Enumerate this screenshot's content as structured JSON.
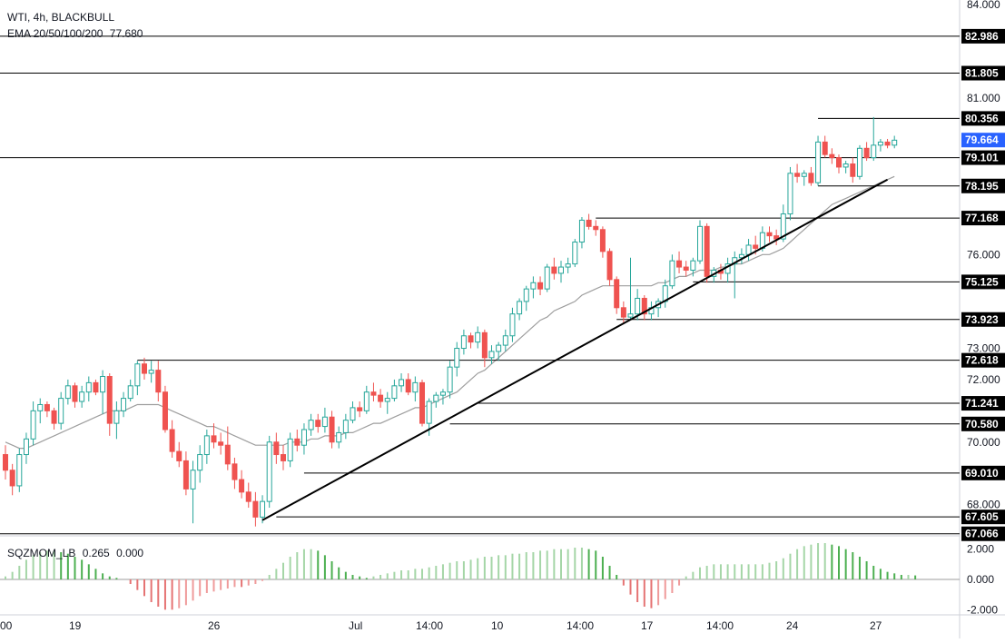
{
  "symbol_line": {
    "symbol": "WTI, 4h, BLACKBULL"
  },
  "ema_line": {
    "label": "EMA 20/50/100/200",
    "value": "77.680"
  },
  "sqz_line": {
    "label": "SQZMOM_LB",
    "v1": "0.265",
    "v2": "0.000"
  },
  "colors": {
    "up": "#26a69a",
    "down": "#ef5350",
    "ema": "#9e9e9e",
    "level": "#000000",
    "trend": "#000000",
    "price_tag": "#2962ff",
    "mom_green": "#a5d6a7",
    "mom_dark": "#4caf50",
    "mom_red": "#ef9a9a"
  },
  "chart_data": {
    "type": "candlestick",
    "symbol": "WTI",
    "timeframe": "4h",
    "ylim": [
      67.0,
      84.0
    ],
    "y_ticks": [
      "84.000",
      "81.000",
      "76.000",
      "73.000",
      "72.000",
      "70.000",
      "68.000"
    ],
    "x_ticks": [
      "00",
      "19",
      "26",
      "Jul",
      "14:00",
      "10",
      "14:00",
      "17",
      "14:00",
      "24",
      "27"
    ],
    "horizontal_levels": [
      "82.986",
      "81.805",
      "80.356",
      "79.101",
      "78.195",
      "77.168",
      "75.125",
      "73.923",
      "72.618",
      "71.241",
      "70.580",
      "69.010",
      "67.605",
      "67.066"
    ],
    "current_price": "79.664",
    "candles_ohlc": [
      [
        69.6,
        69.9,
        68.8,
        69.1
      ],
      [
        69.1,
        69.3,
        68.3,
        68.6
      ],
      [
        68.6,
        69.8,
        68.4,
        69.6
      ],
      [
        69.6,
        70.3,
        69.3,
        70.1
      ],
      [
        70.1,
        71.3,
        69.9,
        71.0
      ],
      [
        71.0,
        71.4,
        70.6,
        71.2
      ],
      [
        71.2,
        71.3,
        70.8,
        71.0
      ],
      [
        71.0,
        71.1,
        70.4,
        70.6
      ],
      [
        70.6,
        71.6,
        70.4,
        71.4
      ],
      [
        71.4,
        72.0,
        71.2,
        71.8
      ],
      [
        71.8,
        71.9,
        71.1,
        71.3
      ],
      [
        71.3,
        71.8,
        71.1,
        71.6
      ],
      [
        71.6,
        72.1,
        71.3,
        71.9
      ],
      [
        71.9,
        72.0,
        71.5,
        71.6
      ],
      [
        71.6,
        72.3,
        70.9,
        72.1
      ],
      [
        72.1,
        72.2,
        70.2,
        70.6
      ],
      [
        70.6,
        71.3,
        70.1,
        71.0
      ],
      [
        71.0,
        71.6,
        70.8,
        71.4
      ],
      [
        71.4,
        72.0,
        71.3,
        71.8
      ],
      [
        71.8,
        72.6,
        71.5,
        72.5
      ],
      [
        72.5,
        72.7,
        72.0,
        72.2
      ],
      [
        72.2,
        72.6,
        71.9,
        72.3
      ],
      [
        72.3,
        72.6,
        71.3,
        71.6
      ],
      [
        71.6,
        71.8,
        70.3,
        70.4
      ],
      [
        70.4,
        70.7,
        69.5,
        69.7
      ],
      [
        69.7,
        70.0,
        69.2,
        69.4
      ],
      [
        69.4,
        69.7,
        68.3,
        68.5
      ],
      [
        68.5,
        69.4,
        67.4,
        69.1
      ],
      [
        69.1,
        69.9,
        68.7,
        69.6
      ],
      [
        69.6,
        70.4,
        69.3,
        70.2
      ],
      [
        70.2,
        70.6,
        69.8,
        70.0
      ],
      [
        70.0,
        70.3,
        69.6,
        69.9
      ],
      [
        69.9,
        70.5,
        69.1,
        69.3
      ],
      [
        69.3,
        69.5,
        68.5,
        68.8
      ],
      [
        68.8,
        69.1,
        68.2,
        68.4
      ],
      [
        68.4,
        68.7,
        67.9,
        68.1
      ],
      [
        68.1,
        68.4,
        67.3,
        67.6
      ],
      [
        67.6,
        68.3,
        67.4,
        68.1
      ],
      [
        68.1,
        70.2,
        67.9,
        70.0
      ],
      [
        70.0,
        70.3,
        69.3,
        69.6
      ],
      [
        69.6,
        69.9,
        69.1,
        69.4
      ],
      [
        69.4,
        70.3,
        69.2,
        70.1
      ],
      [
        70.1,
        70.4,
        69.7,
        69.9
      ],
      [
        69.9,
        70.6,
        69.6,
        70.4
      ],
      [
        70.4,
        70.9,
        70.2,
        70.7
      ],
      [
        70.7,
        70.9,
        70.3,
        70.5
      ],
      [
        70.5,
        71.1,
        70.3,
        70.8
      ],
      [
        70.8,
        71.0,
        69.8,
        70.0
      ],
      [
        70.0,
        70.5,
        69.8,
        70.3
      ],
      [
        70.3,
        70.9,
        70.1,
        70.7
      ],
      [
        70.7,
        71.3,
        70.6,
        71.1
      ],
      [
        71.1,
        71.3,
        70.8,
        71.0
      ],
      [
        71.0,
        71.8,
        70.9,
        71.6
      ],
      [
        71.6,
        71.9,
        71.3,
        71.5
      ],
      [
        71.5,
        71.7,
        71.1,
        71.3
      ],
      [
        71.3,
        71.6,
        70.9,
        71.4
      ],
      [
        71.4,
        72.0,
        71.3,
        71.8
      ],
      [
        71.8,
        72.2,
        71.6,
        72.0
      ],
      [
        72.0,
        72.2,
        71.5,
        71.6
      ],
      [
        71.6,
        72.1,
        71.3,
        71.9
      ],
      [
        71.9,
        72.0,
        70.5,
        70.6
      ],
      [
        70.6,
        71.4,
        70.2,
        71.3
      ],
      [
        71.3,
        71.6,
        71.1,
        71.5
      ],
      [
        71.5,
        71.7,
        71.2,
        71.6
      ],
      [
        71.6,
        72.6,
        71.4,
        72.4
      ],
      [
        72.4,
        73.2,
        72.1,
        73.0
      ],
      [
        73.0,
        73.6,
        72.8,
        73.4
      ],
      [
        73.4,
        73.5,
        73.0,
        73.2
      ],
      [
        73.2,
        73.7,
        73.0,
        73.5
      ],
      [
        73.5,
        73.6,
        72.4,
        72.7
      ],
      [
        72.7,
        73.1,
        72.5,
        72.9
      ],
      [
        72.9,
        73.2,
        72.6,
        73.1
      ],
      [
        73.1,
        73.6,
        72.9,
        73.4
      ],
      [
        73.4,
        74.3,
        73.2,
        74.1
      ],
      [
        74.1,
        74.6,
        73.9,
        74.5
      ],
      [
        74.5,
        75.0,
        74.2,
        74.9
      ],
      [
        74.9,
        75.3,
        74.6,
        75.1
      ],
      [
        75.1,
        75.3,
        74.7,
        74.9
      ],
      [
        74.9,
        75.7,
        74.8,
        75.6
      ],
      [
        75.6,
        75.9,
        75.2,
        75.4
      ],
      [
        75.4,
        75.8,
        75.1,
        75.6
      ],
      [
        75.6,
        75.9,
        75.4,
        75.7
      ],
      [
        75.7,
        76.5,
        75.6,
        76.4
      ],
      [
        76.4,
        77.2,
        76.2,
        77.1
      ],
      [
        77.1,
        77.3,
        76.8,
        76.9
      ],
      [
        76.9,
        77.1,
        76.6,
        76.8
      ],
      [
        76.8,
        76.9,
        75.9,
        76.1
      ],
      [
        76.1,
        76.2,
        75.0,
        75.2
      ],
      [
        75.2,
        75.3,
        74.1,
        74.3
      ],
      [
        74.3,
        74.5,
        73.8,
        74.0
      ],
      [
        74.0,
        75.9,
        73.9,
        74.1
      ],
      [
        74.1,
        74.9,
        73.9,
        74.6
      ],
      [
        74.6,
        74.7,
        73.9,
        74.1
      ],
      [
        74.1,
        74.5,
        73.9,
        74.3
      ],
      [
        74.3,
        74.6,
        74.0,
        74.5
      ],
      [
        74.5,
        75.2,
        74.3,
        75.0
      ],
      [
        75.0,
        76.0,
        74.9,
        75.8
      ],
      [
        75.8,
        76.1,
        75.4,
        75.6
      ],
      [
        75.6,
        75.8,
        75.3,
        75.5
      ],
      [
        75.5,
        75.9,
        75.3,
        75.8
      ],
      [
        75.8,
        77.1,
        75.7,
        76.9
      ],
      [
        76.9,
        77.0,
        75.1,
        75.3
      ],
      [
        75.3,
        75.6,
        75.1,
        75.5
      ],
      [
        75.5,
        75.7,
        75.2,
        75.4
      ],
      [
        75.4,
        75.9,
        75.1,
        75.7
      ],
      [
        75.7,
        76.1,
        74.6,
        75.9
      ],
      [
        75.9,
        76.2,
        75.7,
        76.0
      ],
      [
        76.0,
        76.5,
        75.8,
        76.3
      ],
      [
        76.3,
        76.6,
        76.0,
        76.2
      ],
      [
        76.2,
        76.9,
        76.1,
        76.7
      ],
      [
        76.7,
        76.9,
        76.4,
        76.6
      ],
      [
        76.6,
        76.8,
        76.3,
        76.5
      ],
      [
        76.5,
        77.6,
        76.4,
        77.3
      ],
      [
        77.3,
        78.8,
        77.1,
        78.6
      ],
      [
        78.6,
        78.9,
        78.3,
        78.5
      ],
      [
        78.5,
        78.7,
        78.2,
        78.6
      ],
      [
        78.6,
        78.8,
        78.2,
        78.3
      ],
      [
        78.3,
        79.8,
        78.2,
        79.6
      ],
      [
        79.6,
        79.8,
        79.1,
        79.2
      ],
      [
        79.2,
        79.4,
        78.9,
        79.1
      ],
      [
        79.1,
        79.2,
        78.6,
        78.8
      ],
      [
        78.8,
        79.0,
        78.6,
        78.9
      ],
      [
        78.9,
        79.1,
        78.3,
        78.5
      ],
      [
        78.5,
        79.5,
        78.4,
        79.4
      ],
      [
        79.4,
        79.6,
        79.0,
        79.1
      ],
      [
        79.1,
        80.4,
        79.0,
        79.5
      ],
      [
        79.5,
        79.7,
        79.3,
        79.6
      ],
      [
        79.6,
        79.7,
        79.4,
        79.5
      ],
      [
        79.5,
        79.8,
        79.4,
        79.66
      ]
    ],
    "ema_series": [
      70.0,
      69.9,
      69.8,
      69.8,
      69.9,
      70.0,
      70.1,
      70.2,
      70.3,
      70.4,
      70.5,
      70.6,
      70.7,
      70.8,
      70.9,
      71.0,
      71.0,
      71.0,
      71.1,
      71.2,
      71.2,
      71.2,
      71.2,
      71.1,
      71.0,
      70.9,
      70.8,
      70.7,
      70.6,
      70.5,
      70.5,
      70.4,
      70.3,
      70.2,
      70.1,
      70.0,
      69.9,
      69.9,
      69.9,
      69.9,
      69.9,
      70.0,
      70.0,
      70.0,
      70.1,
      70.1,
      70.2,
      70.2,
      70.2,
      70.3,
      70.3,
      70.4,
      70.5,
      70.6,
      70.6,
      70.7,
      70.8,
      70.9,
      71.0,
      71.1,
      71.1,
      71.2,
      71.3,
      71.4,
      71.5,
      71.6,
      71.8,
      72.0,
      72.2,
      72.3,
      72.5,
      72.7,
      72.9,
      73.1,
      73.3,
      73.5,
      73.7,
      73.9,
      74.0,
      74.2,
      74.3,
      74.4,
      74.5,
      74.7,
      74.8,
      74.9,
      75.0,
      75.0,
      75.0,
      75.0,
      75.0,
      75.0,
      75.0,
      75.0,
      75.1,
      75.1,
      75.2,
      75.3,
      75.3,
      75.4,
      75.5,
      75.5,
      75.5,
      75.6,
      75.6,
      75.7,
      75.7,
      75.8,
      75.9,
      76.0,
      76.0,
      76.1,
      76.2,
      76.4,
      76.6,
      76.8,
      77.0,
      77.2,
      77.4,
      77.6,
      77.7,
      77.8,
      77.9,
      78.0,
      78.1,
      78.2,
      78.3,
      78.4,
      78.5
    ],
    "trendline": [
      [
        37,
        67.5
      ],
      [
        127,
        78.4
      ]
    ],
    "squeeze_momentum": {
      "ylim": [
        -2.4,
        2.4
      ],
      "y_ticks": [
        "2.000",
        "0.000",
        "-2.000"
      ],
      "values": [
        0.2,
        0.5,
        0.9,
        1.3,
        1.6,
        1.8,
        1.9,
        1.9,
        1.8,
        1.7,
        1.5,
        1.3,
        1.0,
        0.7,
        0.4,
        0.2,
        0.1,
        0.0,
        -0.3,
        -0.7,
        -1.1,
        -1.5,
        -1.8,
        -2.0,
        -2.0,
        -1.9,
        -1.7,
        -1.4,
        -1.1,
        -0.9,
        -0.8,
        -0.7,
        -0.6,
        -0.5,
        -0.5,
        -0.4,
        -0.3,
        -0.1,
        0.3,
        0.7,
        1.1,
        1.5,
        1.8,
        2.0,
        2.0,
        1.9,
        1.6,
        1.2,
        0.8,
        0.5,
        0.3,
        0.2,
        0.1,
        0.2,
        0.3,
        0.4,
        0.5,
        0.6,
        0.6,
        0.7,
        0.7,
        0.8,
        0.9,
        1.0,
        1.1,
        1.2,
        1.2,
        1.3,
        1.4,
        1.5,
        1.5,
        1.6,
        1.6,
        1.7,
        1.7,
        1.8,
        1.8,
        1.9,
        1.9,
        2.0,
        2.0,
        2.0,
        2.1,
        2.1,
        2.0,
        1.9,
        1.5,
        0.9,
        0.3,
        -0.4,
        -1.0,
        -1.5,
        -1.8,
        -1.9,
        -1.7,
        -1.3,
        -0.9,
        -0.4,
        0.2,
        0.5,
        0.8,
        0.9,
        1.0,
        1.0,
        1.0,
        1.0,
        1.0,
        1.0,
        1.0,
        1.0,
        1.1,
        1.2,
        1.4,
        1.7,
        2.0,
        2.2,
        2.3,
        2.4,
        2.4,
        2.3,
        2.2,
        2.0,
        1.8,
        1.5,
        1.2,
        0.9,
        0.7,
        0.5,
        0.4,
        0.3,
        0.3,
        0.265
      ]
    }
  }
}
